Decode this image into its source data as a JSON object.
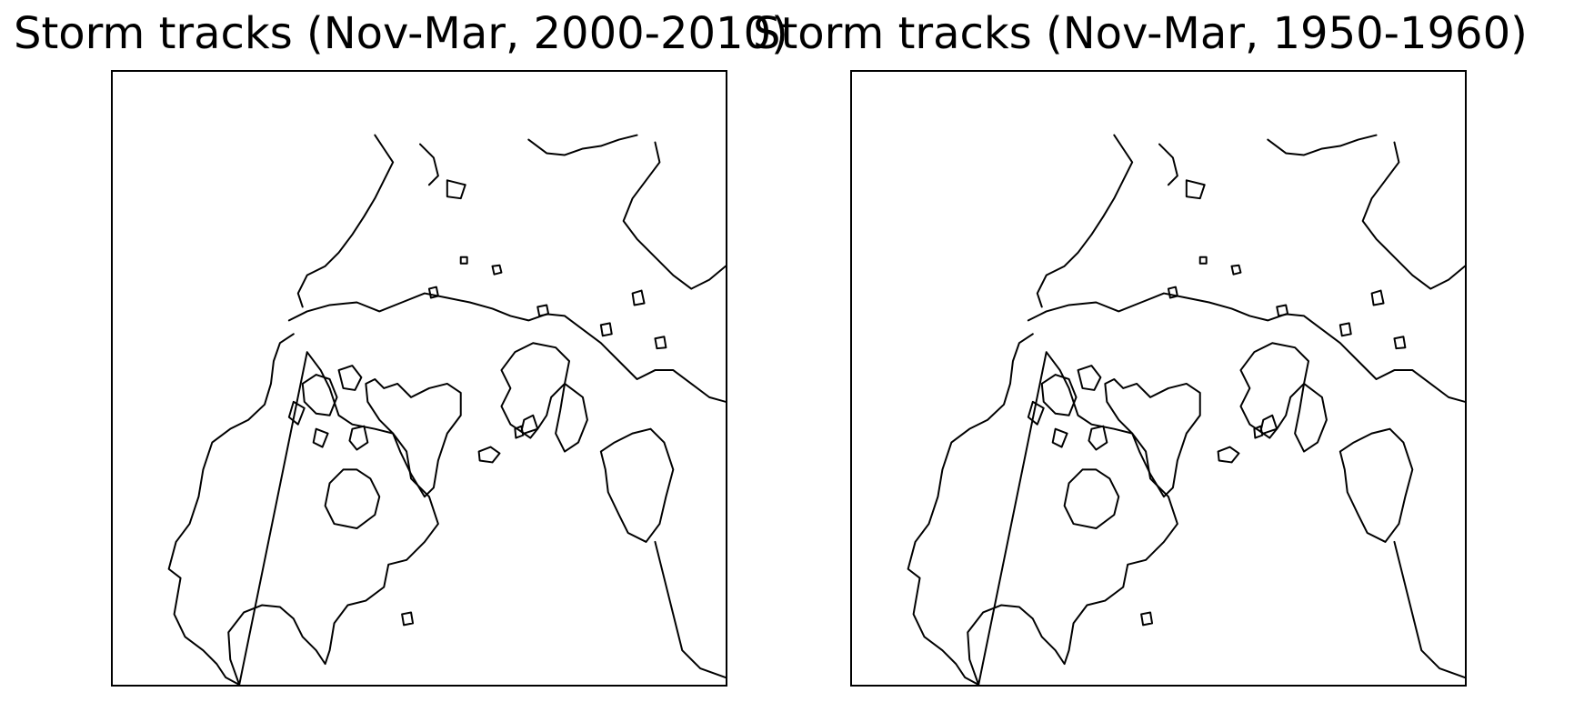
{
  "panels": [
    {
      "title": "Storm tracks (Nov-Mar, 2000-2010)"
    },
    {
      "title": "Storm tracks (Nov-Mar, 1950-1960)"
    }
  ],
  "map": {
    "projection": "north-polar-stereographic",
    "features": [
      "coastlines"
    ]
  },
  "colors": {
    "coastline": "#000000",
    "background": "#ffffff",
    "frame": "#000000"
  }
}
